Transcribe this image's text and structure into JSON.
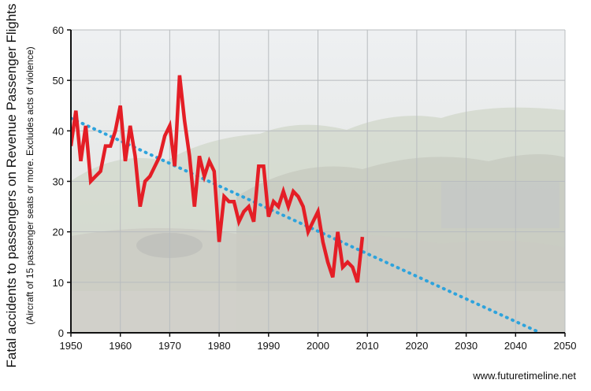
{
  "chart_data": {
    "type": "line",
    "title": "",
    "ylabel": "Fatal accidents to passengers on Revenue Passenger Flights",
    "ylabel_note": "(Aircraft of 15 passenger seats or more. Excludes acts of violence)",
    "xlabel": "",
    "xlim": [
      1950,
      2050
    ],
    "ylim": [
      0,
      60
    ],
    "x_ticks": [
      1950,
      1960,
      1970,
      1980,
      1990,
      2000,
      2010,
      2020,
      2030,
      2040,
      2050
    ],
    "y_ticks": [
      0,
      10,
      20,
      30,
      40,
      50,
      60
    ],
    "grid": true,
    "legend": "none",
    "series": [
      {
        "color": "#e41e26",
        "style": "solid",
        "points": [
          [
            1950,
            37
          ],
          [
            1951,
            44
          ],
          [
            1952,
            34
          ],
          [
            1953,
            41
          ],
          [
            1954,
            30
          ],
          [
            1955,
            31
          ],
          [
            1956,
            32
          ],
          [
            1957,
            37
          ],
          [
            1958,
            37
          ],
          [
            1959,
            40
          ],
          [
            1960,
            45
          ],
          [
            1961,
            34
          ],
          [
            1962,
            41
          ],
          [
            1963,
            35
          ],
          [
            1964,
            25
          ],
          [
            1965,
            30
          ],
          [
            1966,
            31
          ],
          [
            1967,
            33
          ],
          [
            1968,
            35
          ],
          [
            1969,
            39
          ],
          [
            1970,
            41
          ],
          [
            1971,
            33
          ],
          [
            1972,
            51
          ],
          [
            1973,
            42
          ],
          [
            1974,
            35
          ],
          [
            1975,
            25
          ],
          [
            1976,
            35
          ],
          [
            1977,
            31
          ],
          [
            1978,
            34
          ],
          [
            1979,
            32
          ],
          [
            1980,
            18
          ],
          [
            1981,
            27
          ],
          [
            1982,
            26
          ],
          [
            1983,
            26
          ],
          [
            1984,
            22
          ],
          [
            1985,
            24
          ],
          [
            1986,
            25
          ],
          [
            1987,
            22
          ],
          [
            1988,
            33
          ],
          [
            1989,
            33
          ],
          [
            1990,
            23
          ],
          [
            1991,
            26
          ],
          [
            1992,
            25
          ],
          [
            1993,
            28
          ],
          [
            1994,
            25
          ],
          [
            1995,
            28
          ],
          [
            1996,
            27
          ],
          [
            1997,
            25
          ],
          [
            1998,
            20
          ],
          [
            1999,
            22
          ],
          [
            2000,
            24
          ],
          [
            2001,
            18
          ],
          [
            2002,
            14
          ],
          [
            2003,
            11
          ],
          [
            2004,
            20
          ],
          [
            2005,
            13
          ],
          [
            2006,
            14
          ],
          [
            2007,
            13
          ],
          [
            2008,
            10
          ],
          [
            2009,
            19
          ]
        ]
      },
      {
        "color": "#2ea3dc",
        "style": "dotted",
        "points": [
          [
            1950,
            42.5
          ],
          [
            2045,
            0
          ]
        ]
      }
    ]
  },
  "credit": "www.futuretimeline.net",
  "colors": {
    "actual_line": "#e41e26",
    "trend_line": "#2ea3dc",
    "background_photo": "disaster-debris-scene"
  }
}
